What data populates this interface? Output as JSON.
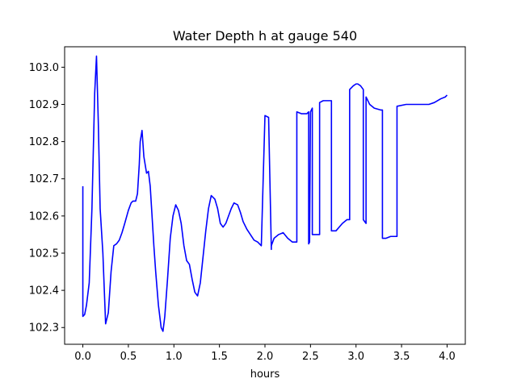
{
  "chart_data": {
    "type": "line",
    "title": "Water Depth h at gauge 540",
    "xlabel": "hours",
    "ylabel": "",
    "xlim": [
      -0.2,
      4.2
    ],
    "ylim": [
      102.255,
      103.055
    ],
    "xticks": [
      0.0,
      0.5,
      1.0,
      1.5,
      2.0,
      2.5,
      3.0,
      3.5,
      4.0
    ],
    "xtick_labels": [
      "0.0",
      "0.5",
      "1.0",
      "1.5",
      "2.0",
      "2.5",
      "3.0",
      "3.5",
      "4.0"
    ],
    "yticks": [
      102.3,
      102.4,
      102.5,
      102.6,
      102.7,
      102.8,
      102.9,
      103.0
    ],
    "ytick_labels": [
      "102.3",
      "102.4",
      "102.5",
      "102.6",
      "102.7",
      "102.8",
      "102.9",
      "103.0"
    ],
    "grid": false,
    "series": [
      {
        "color": "#0000ff",
        "x": [
          0,
          0,
          0.02,
          0.04,
          0.07,
          0.1,
          0.13,
          0.15,
          0.17,
          0.19,
          0.22,
          0.25,
          0.28,
          0.31,
          0.34,
          0.37,
          0.4,
          0.43,
          0.46,
          0.5,
          0.53,
          0.55,
          0.58,
          0.6,
          0.62,
          0.63,
          0.65,
          0.67,
          0.7,
          0.72,
          0.74,
          0.76,
          0.78,
          0.8,
          0.83,
          0.86,
          0.88,
          0.9,
          0.93,
          0.96,
          0.99,
          1.02,
          1.05,
          1.08,
          1.11,
          1.14,
          1.17,
          1.2,
          1.23,
          1.26,
          1.29,
          1.32,
          1.35,
          1.38,
          1.41,
          1.45,
          1.48,
          1.51,
          1.54,
          1.57,
          1.6,
          1.63,
          1.66,
          1.7,
          1.73,
          1.76,
          1.8,
          1.84,
          1.88,
          1.92,
          1.96,
          2.0,
          2.04,
          2.04,
          2.07,
          2.07,
          2.1,
          2.15,
          2.2,
          2.25,
          2.3,
          2.35,
          2.35,
          2.4,
          2.46,
          2.48,
          2.48,
          2.49,
          2.5,
          2.52,
          2.52,
          2.54,
          2.56,
          2.6,
          2.6,
          2.64,
          2.7,
          2.73,
          2.73,
          2.78,
          2.85,
          2.9,
          2.93,
          2.93,
          2.97,
          3.0,
          3.02,
          3.05,
          3.08,
          3.08,
          3.11,
          3.11,
          3.15,
          3.2,
          3.27,
          3.29,
          3.29,
          3.33,
          3.38,
          3.44,
          3.45,
          3.45,
          3.55,
          3.7,
          3.8,
          3.86,
          3.93,
          3.98,
          4.0
        ],
        "y": [
          102.68,
          102.33,
          102.335,
          102.36,
          102.42,
          102.62,
          102.93,
          103.03,
          102.85,
          102.62,
          102.5,
          102.31,
          102.34,
          102.45,
          102.52,
          102.525,
          102.535,
          102.555,
          102.58,
          102.615,
          102.635,
          102.64,
          102.64,
          102.66,
          102.74,
          102.8,
          102.83,
          102.76,
          102.715,
          102.72,
          102.68,
          102.6,
          102.52,
          102.45,
          102.36,
          102.3,
          102.29,
          102.33,
          102.43,
          102.54,
          102.6,
          102.63,
          102.615,
          102.58,
          102.52,
          102.48,
          102.47,
          102.43,
          102.395,
          102.385,
          102.42,
          102.49,
          102.56,
          102.62,
          102.655,
          102.645,
          102.62,
          102.58,
          102.57,
          102.58,
          102.6,
          102.62,
          102.635,
          102.63,
          102.61,
          102.585,
          102.565,
          102.55,
          102.535,
          102.53,
          102.52,
          102.87,
          102.865,
          102.865,
          102.51,
          102.52,
          102.54,
          102.55,
          102.555,
          102.54,
          102.53,
          102.53,
          102.88,
          102.875,
          102.875,
          102.88,
          102.525,
          102.53,
          102.88,
          102.89,
          102.55,
          102.55,
          102.55,
          102.55,
          102.905,
          102.91,
          102.91,
          102.91,
          102.56,
          102.56,
          102.58,
          102.59,
          102.59,
          102.94,
          102.95,
          102.955,
          102.955,
          102.95,
          102.94,
          102.59,
          102.58,
          102.92,
          102.9,
          102.89,
          102.885,
          102.885,
          102.54,
          102.54,
          102.545,
          102.545,
          102.545,
          102.895,
          102.9,
          102.9,
          102.9,
          102.905,
          102.915,
          102.92,
          102.925
        ]
      }
    ]
  }
}
